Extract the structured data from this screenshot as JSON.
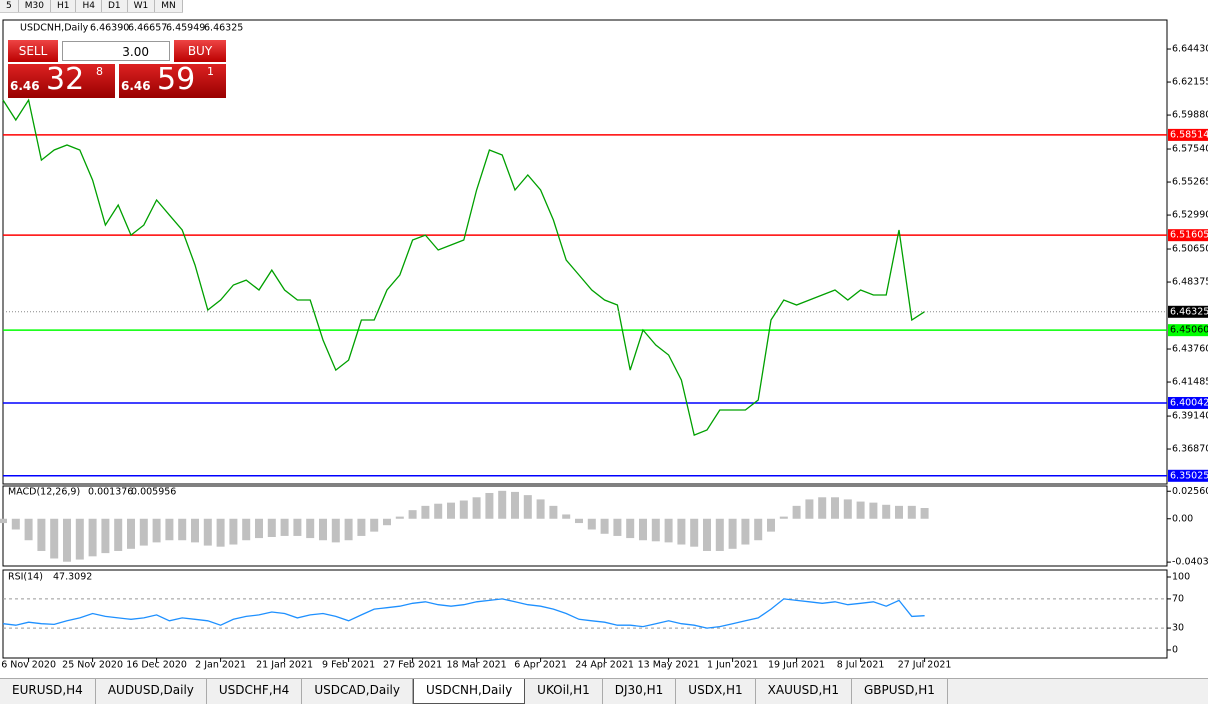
{
  "toolbar": {
    "timeframes": [
      "5",
      "M30",
      "H1",
      "H4",
      "D1",
      "W1",
      "MN"
    ]
  },
  "symbol_info": {
    "symbol": "USDCNH,Daily",
    "ohlc": [
      {
        "value": 6.4639,
        "label": "6.46390"
      },
      6.46657,
      6.45949,
      6.46325
    ]
  },
  "trade_panel": {
    "sell": "SELL",
    "buy": "BUY",
    "volume": "3.00",
    "bid": {
      "big": "6.46",
      "pips": "32",
      "point": "8"
    },
    "ask": {
      "big": "6.46",
      "pips": "59",
      "point": "1"
    }
  },
  "chart_data": [
    {
      "type": "line",
      "ylim": [
        6.3446,
        6.6643
      ],
      "categories": [
        null,
        null,
        "6 Nov 2020",
        null,
        null,
        null,
        null,
        "25 Nov 2020",
        null,
        null,
        null,
        null,
        "16 Dec 2020",
        null,
        null,
        null,
        null,
        "2 Jan 2021",
        null,
        null,
        null,
        null,
        "21 Jan 2021",
        null,
        null,
        null,
        null,
        "9 Feb 2021",
        null,
        null,
        null,
        null,
        "27 Feb 2021",
        null,
        null,
        null,
        null,
        "18 Mar 2021",
        null,
        null,
        null,
        null,
        "6 Apr 2021",
        null,
        null,
        null,
        null,
        "24 Apr 2021",
        null,
        null,
        null,
        null,
        "13 May 2021",
        null,
        null,
        null,
        null,
        "1 Jun 2021",
        null,
        null,
        null,
        null,
        "19 Jun 2021",
        null,
        null,
        null,
        null,
        "8 Jul 2021",
        null,
        null,
        null,
        null,
        "27 Jul 2021"
      ],
      "series": [
        {
          "color": "#00a000",
          "values": [
            6.6092,
            6.5954,
            6.6092,
            6.5678,
            6.5747,
            6.5782,
            6.5747,
            6.554,
            6.523,
            6.5368,
            6.5161,
            6.523,
            6.5403,
            6.5299,
            6.5196,
            6.4955,
            6.4645,
            6.4714,
            6.4817,
            6.4851,
            6.4783,
            6.492,
            6.4783,
            6.4714,
            6.4714,
            6.4438,
            6.4231,
            6.43,
            6.4576,
            6.4576,
            6.4783,
            6.4886,
            6.5127,
            6.5161,
            6.5058,
            6.5093,
            6.5127,
            6.5472,
            6.5747,
            6.5713,
            6.5472,
            6.5575,
            6.5472,
            6.5265,
            6.4989,
            6.4886,
            6.4783,
            6.4714,
            6.4679,
            6.4231,
            6.4507,
            6.4404,
            6.4335,
            6.4162,
            6.3783,
            6.3818,
            6.3956,
            6.3956,
            6.3956,
            6.4025,
            6.4576,
            6.4714,
            6.4679,
            6.4714,
            6.4748,
            6.4783,
            6.4714,
            6.4783,
            6.4748,
            6.4748,
            6.5196,
            6.4576,
            6.4633
          ]
        }
      ],
      "yticks": [
        {
          "value": 6.6443,
          "label": "6.64430"
        },
        6.62155,
        {
          "value": 6.5988,
          "label": "6.59880"
        },
        {
          "value": 6.5754,
          "label": "6.57540"
        },
        6.55265,
        {
          "value": 6.5299,
          "label": "6.52990"
        },
        {
          "value": 6.5065,
          "label": "6.50650"
        },
        6.48375,
        {
          "value": 6.4376,
          "label": "6.43760"
        },
        6.41485,
        {
          "value": 6.3914,
          "label": "6.39140"
        },
        {
          "value": 6.3687,
          "label": "6.36870"
        }
      ],
      "levels": [
        {
          "value": 6.58514,
          "color": "#ff0000"
        },
        {
          "value": 6.51605,
          "color": "#ff0000"
        },
        {
          "value": 6.4506,
          "label": "6.45060",
          "color": "#00ff00"
        },
        {
          "value": 6.40042,
          "color": "#0000ff"
        },
        {
          "value": 6.35025,
          "color": "#0000ff"
        }
      ]
    },
    {
      "type": "bar",
      "indicator": "MACD(12,26,9)",
      "readout": [
        0.001376,
        0.005956
      ],
      "color": "#c0c0c0",
      "ylim": [
        -0.044,
        0.0305
      ],
      "yticks": [
        0.025609,
        {
          "value": 0,
          "label": "0.00"
        },
        -0.040386
      ],
      "values": [
        -0.004,
        -0.01,
        -0.02,
        -0.03,
        -0.037,
        -0.04,
        -0.038,
        -0.035,
        -0.032,
        -0.03,
        -0.028,
        -0.025,
        -0.022,
        -0.02,
        -0.02,
        -0.022,
        -0.025,
        -0.026,
        -0.024,
        -0.02,
        -0.018,
        -0.017,
        -0.016,
        -0.016,
        -0.018,
        -0.02,
        -0.022,
        -0.02,
        -0.016,
        -0.012,
        -0.006,
        0.002,
        0.008,
        0.012,
        0.014,
        0.015,
        0.017,
        0.02,
        0.024,
        0.026,
        0.025,
        0.022,
        0.018,
        0.012,
        0.004,
        -0.004,
        -0.01,
        -0.014,
        -0.016,
        -0.018,
        -0.02,
        -0.021,
        -0.022,
        -0.024,
        -0.026,
        -0.03,
        -0.03,
        -0.028,
        -0.024,
        -0.02,
        -0.012,
        0.002,
        0.012,
        0.018,
        0.02,
        0.02,
        0.018,
        0.016,
        0.015,
        0.013,
        0.012,
        0.012,
        0.01
      ]
    },
    {
      "type": "line",
      "indicator": "RSI(14)",
      "readout": [
        47.3092
      ],
      "ylim": [
        -11,
        109.6
      ],
      "yticks": [
        100,
        70,
        30,
        0
      ],
      "levels": [
        {
          "value": 70,
          "color": "#999999"
        },
        {
          "value": 30,
          "color": "#999999"
        }
      ],
      "series": [
        {
          "color": "#1e90ff",
          "values": [
            36,
            34,
            38,
            36,
            35,
            40,
            44,
            50,
            46,
            44,
            42,
            44,
            48,
            40,
            44,
            42,
            40,
            34,
            42,
            46,
            48,
            52,
            50,
            44,
            48,
            50,
            46,
            40,
            48,
            56,
            58,
            60,
            64,
            66,
            62,
            60,
            62,
            66,
            68,
            70,
            66,
            62,
            60,
            56,
            50,
            42,
            40,
            38,
            34,
            34,
            32,
            36,
            40,
            36,
            34,
            30,
            32,
            36,
            40,
            44,
            56,
            70,
            68,
            66,
            64,
            66,
            62,
            64,
            66,
            60,
            68,
            46,
            47
          ]
        }
      ]
    }
  ],
  "tabs": [
    "EURUSD,H4",
    "AUDUSD,Daily",
    "USDCHF,H4",
    "USDCAD,Daily",
    "USDCNH,Daily",
    "UKOil,H1",
    "DJ30,H1",
    "USDX,H1",
    "XAUUSD,H1",
    "GBPUSD,H1"
  ],
  "active_tab_index": 4
}
